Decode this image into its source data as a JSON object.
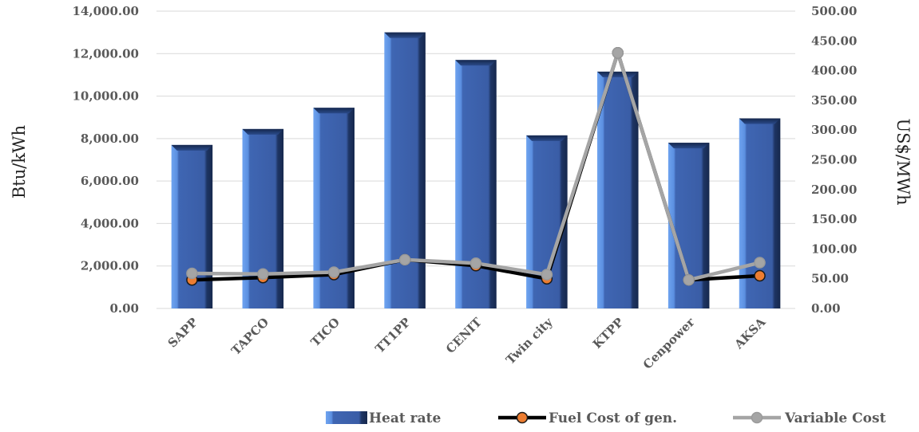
{
  "chart_data": {
    "type": "bar",
    "categories": [
      "SAPP",
      "TAPCO",
      "TICO",
      "TT1PP",
      "CENIT",
      "Twin city",
      "KTPP",
      "Cenpower",
      "AKSA"
    ],
    "ylabel": "Btu/kWh",
    "y2label": "US$/MWh",
    "ylim": [
      0,
      14000
    ],
    "y2lim": [
      0,
      500
    ],
    "yticks": [
      "0.00",
      "2,000.00",
      "4,000.00",
      "6,000.00",
      "8,000.00",
      "10,000.00",
      "12,000.00",
      "14,000.00"
    ],
    "y2ticks": [
      "0.00",
      "50.00",
      "100.00",
      "150.00",
      "200.00",
      "250.00",
      "300.00",
      "350.00",
      "400.00",
      "450.00",
      "500.00"
    ],
    "grid": true,
    "legend_position": "bottom-right",
    "series": [
      {
        "name": "Heat rate",
        "kind": "bar",
        "axis": "left",
        "color": "#3f63b0",
        "values": [
          7700,
          8450,
          9450,
          13000,
          11700,
          8150,
          11150,
          7800,
          8950
        ]
      },
      {
        "name": "Fuel Cost of gen.",
        "kind": "line",
        "axis": "right",
        "color": "#000000",
        "marker_color": "#ed7d31",
        "values": [
          48,
          52,
          57,
          82,
          72,
          50,
          430,
          48,
          55
        ]
      },
      {
        "name": "Variable Cost",
        "kind": "line",
        "axis": "right",
        "color": "#a5a5a5",
        "marker_color": "#a5a5a5",
        "values": [
          59,
          58,
          61,
          82,
          76,
          57,
          430,
          48,
          77
        ]
      }
    ]
  }
}
